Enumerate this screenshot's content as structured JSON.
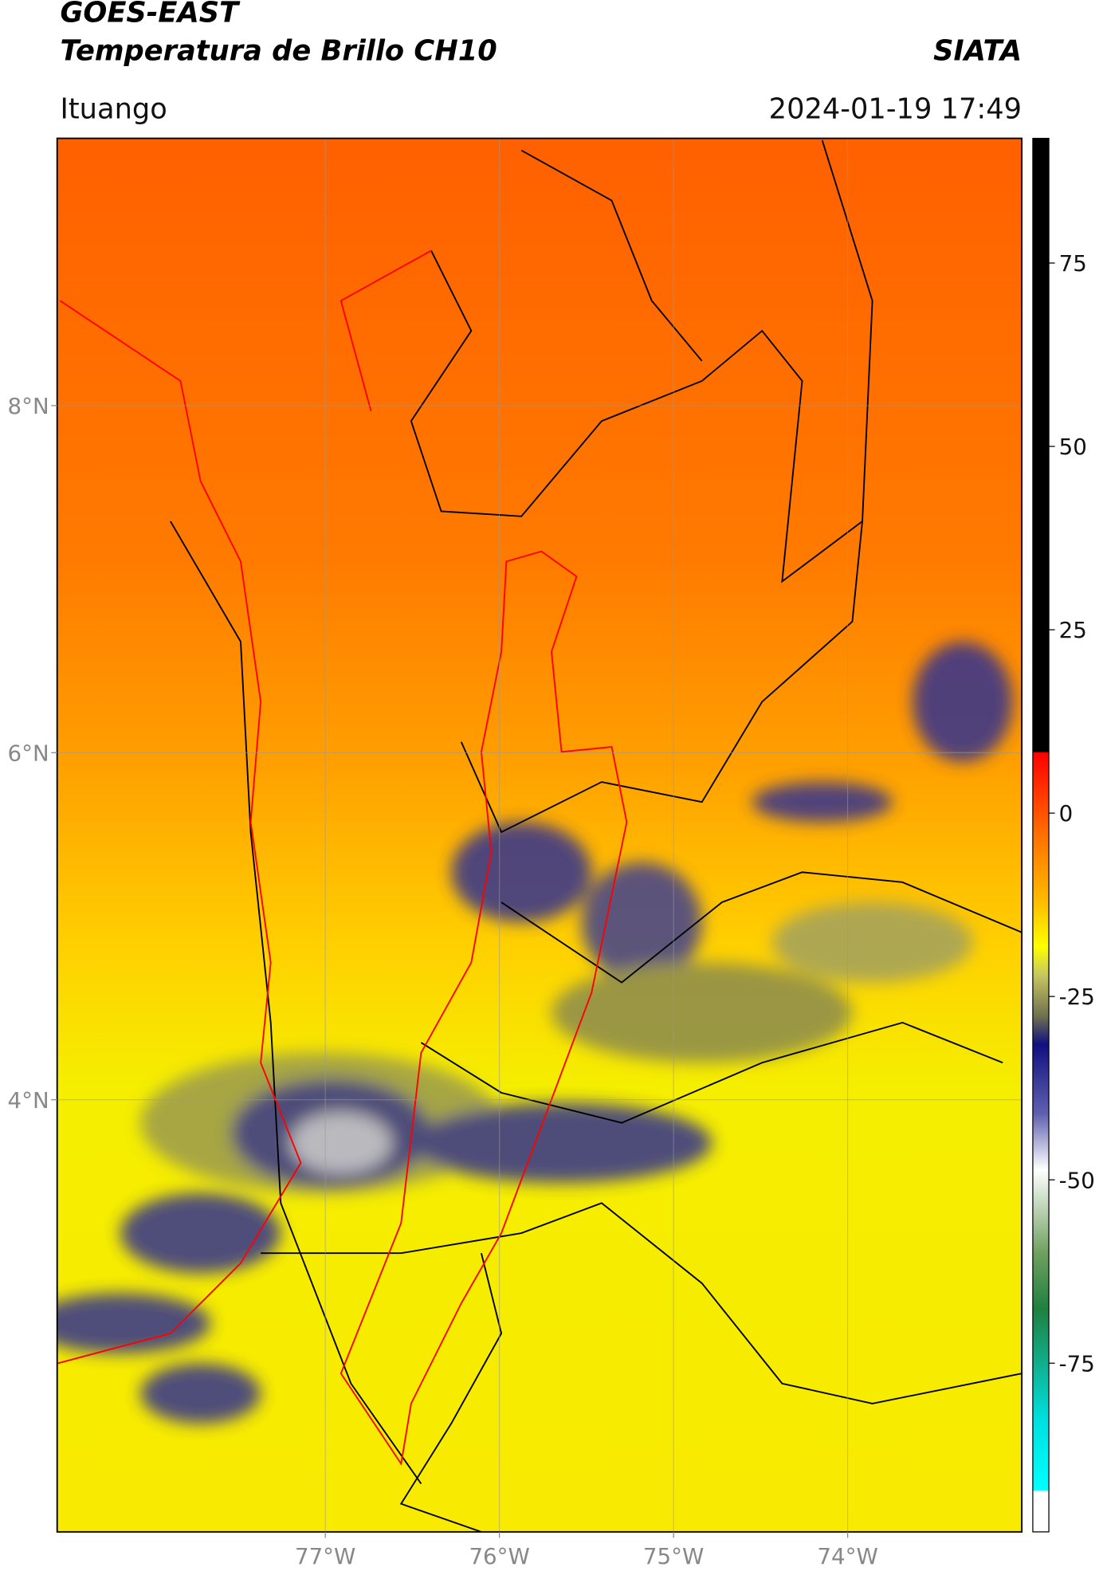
{
  "header": {
    "title": "GOES-EAST",
    "subtitle": "Temperatura de Brillo CH10",
    "source": "SIATA",
    "location": "Ituango",
    "timestamp": "2024-01-19 17:49"
  },
  "map": {
    "xlim": [
      -78.54,
      -73.0
    ],
    "ylim": [
      1.51,
      9.54
    ],
    "xticks": [
      {
        "value": -77,
        "label": "77°W"
      },
      {
        "value": -76,
        "label": "76°W"
      },
      {
        "value": -75,
        "label": "75°W"
      },
      {
        "value": -74,
        "label": "74°W"
      }
    ],
    "yticks": [
      {
        "value": 8,
        "label": "8°N"
      },
      {
        "value": 6,
        "label": "6°N"
      },
      {
        "value": 4,
        "label": "4°N"
      }
    ],
    "grid": true
  },
  "colorbar": {
    "range": [
      -98,
      92
    ],
    "ticks": [
      75,
      50,
      25,
      0,
      -25,
      -50,
      -75
    ]
  }
}
